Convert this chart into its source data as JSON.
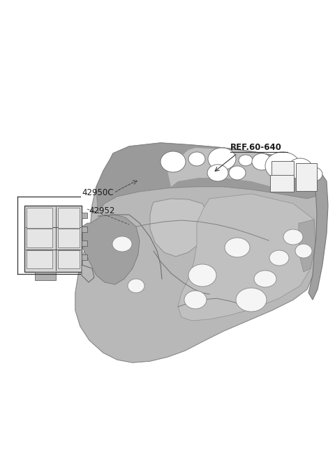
{
  "background_color": "#ffffff",
  "part_number_ref": "REF.60-640",
  "part_label_1": "42950C",
  "part_label_2": "42952",
  "text_color": "#1a1a1a",
  "fontsize_labels": 8.5,
  "fontsize_ref": 8.5,
  "panel_color": "#b0b0b0",
  "panel_dark": "#888888",
  "panel_light": "#d0d0d0",
  "panel_highlight": "#e0e0e0",
  "unit_color": "#cccccc",
  "unit_dark": "#555555"
}
